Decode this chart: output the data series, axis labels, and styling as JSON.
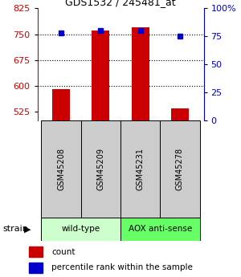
{
  "title": "GDS1532 / 245481_at",
  "samples": [
    "GSM45208",
    "GSM45209",
    "GSM45231",
    "GSM45278"
  ],
  "counts": [
    590,
    760,
    770,
    535
  ],
  "percentiles": [
    78,
    80,
    80,
    75
  ],
  "ylim_left": [
    500,
    825
  ],
  "ylim_right": [
    0,
    100
  ],
  "yticks_left": [
    525,
    600,
    675,
    750,
    825
  ],
  "yticks_right": [
    0,
    25,
    50,
    75,
    100
  ],
  "ytick_labels_right": [
    "0",
    "25",
    "50",
    "75",
    "100%"
  ],
  "bar_color": "#cc0000",
  "dot_color": "#0000cc",
  "groups": [
    {
      "label": "wild-type",
      "samples": [
        0,
        1
      ],
      "color": "#ccffcc"
    },
    {
      "label": "AOX anti-sense",
      "samples": [
        2,
        3
      ],
      "color": "#66ff66"
    }
  ],
  "strain_label": "strain",
  "legend_count_label": "count",
  "legend_pct_label": "percentile rank within the sample",
  "sample_box_color": "#cccccc",
  "left_tick_color": "#cc0000",
  "right_tick_color": "#0000cc",
  "gridline_yticks": [
    600,
    675,
    750
  ]
}
